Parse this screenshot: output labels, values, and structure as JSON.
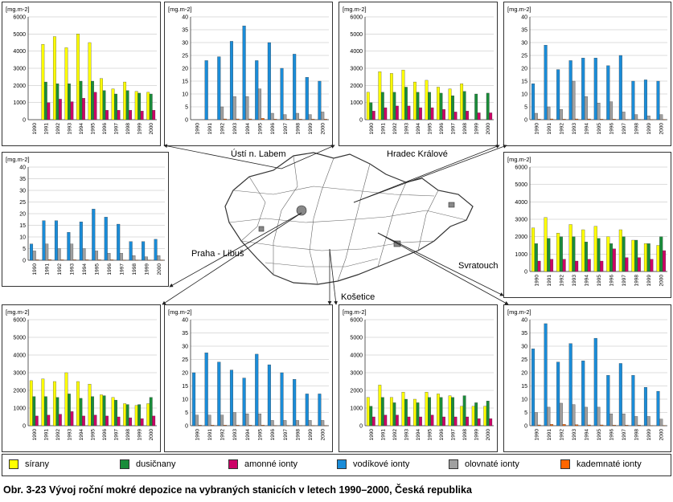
{
  "caption": "Obr. 3-23  Vývoj roční mokré depozice na vybraných stanicích v letech 1990–2000, Česká republika",
  "stations": {
    "usti": "Ústí n. Labem",
    "hradec": "Hradec Králové",
    "praha": "Praha - Libuš",
    "svratouch": "Svratouch",
    "kosetice": "Košetice"
  },
  "legend": [
    {
      "name": "sírany",
      "color": "#ffff00"
    },
    {
      "name": "dusičnany",
      "color": "#1a8c3a"
    },
    {
      "name": "amonné ionty",
      "color": "#cc0066"
    },
    {
      "name": "vodíkové ionty",
      "color": "#1a8cd8"
    },
    {
      "name": "olovnaté ionty",
      "color": "#a0a0a0"
    },
    {
      "name": "kademnaté ionty",
      "color": "#ff6600"
    }
  ],
  "chart_data": [
    {
      "id": "p1",
      "type": "bar",
      "ylabel": "[mg.m-2]",
      "ylim": [
        0,
        6000
      ],
      "yticks": [
        0,
        1000,
        2000,
        3000,
        4000,
        5000,
        6000
      ],
      "categories": [
        "1990",
        "1991",
        "1992",
        "1993",
        "1994",
        "1995",
        "1996",
        "1997",
        "1998",
        "1999",
        "2000"
      ],
      "series": [
        {
          "name": "sírany",
          "values": [
            null,
            4400,
            4850,
            4200,
            5000,
            4500,
            2400,
            1800,
            2200,
            1650,
            1600
          ]
        },
        {
          "name": "dusičnany",
          "values": [
            null,
            2200,
            2100,
            2100,
            2250,
            2250,
            1700,
            1500,
            1700,
            1550,
            1500
          ]
        },
        {
          "name": "amonné ionty",
          "values": [
            null,
            1000,
            1200,
            1050,
            1250,
            1600,
            550,
            550,
            550,
            500,
            550
          ]
        }
      ]
    },
    {
      "id": "p2",
      "type": "bar",
      "ylabel": "[mg.m-2]",
      "ylim": [
        0,
        40
      ],
      "yticks": [
        0,
        5,
        10,
        15,
        20,
        25,
        30,
        35,
        40
      ],
      "categories": [
        "1990",
        "1991",
        "1992",
        "1993",
        "1994",
        "1995",
        "1996",
        "1997",
        "1998",
        "1999",
        "2000"
      ],
      "series": [
        {
          "name": "vodíkové ionty",
          "values": [
            null,
            23,
            24.5,
            30.5,
            36.5,
            23,
            30,
            20,
            25.5,
            16.5,
            15
          ]
        },
        {
          "name": "olovnaté ionty",
          "values": [
            null,
            null,
            5,
            9,
            9,
            12,
            2.5,
            2,
            2.5,
            2,
            3
          ]
        },
        {
          "name": "kademnaté ionty",
          "values": [
            null,
            null,
            0.3,
            0.3,
            0.3,
            0.5,
            0.2,
            0.2,
            0.2,
            0.2,
            0.2
          ]
        }
      ]
    },
    {
      "id": "p3",
      "type": "bar",
      "ylabel": "[mg.m-2]",
      "ylim": [
        0,
        6000
      ],
      "yticks": [
        0,
        1000,
        2000,
        3000,
        4000,
        5000,
        6000
      ],
      "categories": [
        "1990",
        "1991",
        "1992",
        "1993",
        "1994",
        "1995",
        "1996",
        "1997",
        "1998",
        "1999",
        "2000"
      ],
      "series": [
        {
          "name": "sírany",
          "values": [
            1600,
            2800,
            2700,
            2900,
            2200,
            2300,
            1900,
            1800,
            2100,
            null,
            null
          ]
        },
        {
          "name": "dusičnany",
          "values": [
            1000,
            1600,
            1600,
            1900,
            1600,
            1600,
            1550,
            1400,
            1650,
            1500,
            1550
          ]
        },
        {
          "name": "amonné ionty",
          "values": [
            500,
            700,
            800,
            800,
            700,
            700,
            600,
            450,
            500,
            400,
            400
          ]
        }
      ]
    },
    {
      "id": "p4",
      "type": "bar",
      "ylabel": "[mg.m-2]",
      "ylim": [
        0,
        40
      ],
      "yticks": [
        0,
        5,
        10,
        15,
        20,
        25,
        30,
        35,
        40
      ],
      "categories": [
        "1990",
        "1991",
        "1992",
        "1993",
        "1994",
        "1995",
        "1996",
        "1997",
        "1998",
        "1999",
        "2000"
      ],
      "series": [
        {
          "name": "vodíkové ionty",
          "values": [
            14,
            29,
            19.5,
            23,
            24,
            24,
            21,
            25,
            15,
            15.5,
            15
          ]
        },
        {
          "name": "olovnaté ionty",
          "values": [
            2.5,
            5,
            4,
            15,
            9,
            6.5,
            7,
            3,
            2,
            1.5,
            2
          ]
        },
        {
          "name": "kademnaté ionty",
          "values": [
            0.2,
            0.3,
            0.2,
            0.3,
            0.3,
            0.2,
            0.2,
            0.1,
            0.1,
            0.1,
            0.1
          ]
        }
      ]
    },
    {
      "id": "p5",
      "type": "bar",
      "ylabel": "[mg.m-2]",
      "ylim": [
        0,
        40
      ],
      "yticks": [
        0,
        5,
        10,
        15,
        20,
        25,
        30,
        35,
        40
      ],
      "categories": [
        "1990",
        "1991",
        "1992",
        "1993",
        "1994",
        "1995",
        "1996",
        "1997",
        "1998",
        "1999",
        "2000"
      ],
      "series": [
        {
          "name": "vodíkové ionty",
          "values": [
            7,
            17,
            17,
            12,
            16.5,
            22,
            18.5,
            15.5,
            8,
            8,
            9
          ]
        },
        {
          "name": "olovnaté ionty",
          "values": [
            4,
            7,
            5,
            7,
            5,
            4,
            3,
            3,
            2,
            1.5,
            2
          ]
        },
        {
          "name": "kademnaté ionty",
          "values": [
            0.2,
            0.3,
            0.2,
            0.2,
            0.2,
            0.2,
            0.2,
            0.1,
            0.1,
            0.1,
            0.1
          ]
        }
      ]
    },
    {
      "id": "p6",
      "type": "bar",
      "ylabel": "[mg.m-2]",
      "ylim": [
        0,
        6000
      ],
      "yticks": [
        0,
        1000,
        2000,
        3000,
        4000,
        5000,
        6000
      ],
      "categories": [
        "1990",
        "1991",
        "1992",
        "1993",
        "1994",
        "1995",
        "1996",
        "1997",
        "1998",
        "1999",
        "2000"
      ],
      "series": [
        {
          "name": "sírany",
          "values": [
            2500,
            3100,
            2200,
            2700,
            2400,
            2600,
            2000,
            2400,
            1800,
            1600,
            1500
          ]
        },
        {
          "name": "dusičnany",
          "values": [
            1600,
            1900,
            2000,
            2000,
            1700,
            1900,
            1600,
            2000,
            1800,
            1600,
            2000
          ]
        },
        {
          "name": "amonné ionty",
          "values": [
            600,
            700,
            700,
            600,
            700,
            600,
            1300,
            800,
            800,
            700,
            1200
          ]
        }
      ]
    },
    {
      "id": "p7",
      "type": "bar",
      "ylabel": "[mg.m-2]",
      "ylim": [
        0,
        6000
      ],
      "yticks": [
        0,
        1000,
        2000,
        3000,
        4000,
        5000,
        6000
      ],
      "categories": [
        "1990",
        "1991",
        "1992",
        "1993",
        "1994",
        "1995",
        "1996",
        "1997",
        "1998",
        "1999",
        "2000"
      ],
      "series": [
        {
          "name": "sírany",
          "values": [
            2550,
            2650,
            2500,
            3000,
            2500,
            2350,
            1750,
            1600,
            1250,
            1150,
            1250
          ]
        },
        {
          "name": "dusičnany",
          "values": [
            1650,
            1650,
            1600,
            1800,
            1550,
            1650,
            1700,
            1450,
            1200,
            1200,
            1600
          ]
        },
        {
          "name": "amonné ionty",
          "values": [
            550,
            600,
            650,
            800,
            550,
            600,
            550,
            500,
            450,
            400,
            550
          ]
        }
      ]
    },
    {
      "id": "p8",
      "type": "bar",
      "ylabel": "[mg.m-2]",
      "ylim": [
        0,
        40
      ],
      "yticks": [
        0,
        5,
        10,
        15,
        20,
        25,
        30,
        35,
        40
      ],
      "categories": [
        "1990",
        "1991",
        "1992",
        "1993",
        "1994",
        "1995",
        "1996",
        "1997",
        "1998",
        "1999",
        "2000"
      ],
      "series": [
        {
          "name": "vodíkové ionty",
          "values": [
            20,
            27.5,
            24,
            21,
            18,
            27,
            23,
            20,
            17.5,
            12,
            12
          ]
        },
        {
          "name": "olovnaté ionty",
          "values": [
            4,
            4,
            4,
            5,
            4.5,
            4.5,
            2,
            2,
            2,
            2,
            2
          ]
        },
        {
          "name": "kademnaté ionty",
          "values": [
            0.2,
            0.2,
            0.2,
            0.2,
            0.2,
            0.2,
            0.1,
            0.1,
            0.1,
            0.1,
            0.1
          ]
        }
      ]
    },
    {
      "id": "p9",
      "type": "bar",
      "ylabel": "[mg.m-2]",
      "ylim": [
        0,
        6000
      ],
      "yticks": [
        0,
        1000,
        2000,
        3000,
        4000,
        5000,
        6000
      ],
      "categories": [
        "1990",
        "1991",
        "1992",
        "1993",
        "1994",
        "1995",
        "1996",
        "1997",
        "1998",
        "1999",
        "2000"
      ],
      "series": [
        {
          "name": "sírany",
          "values": [
            1600,
            2300,
            1600,
            1900,
            1500,
            1900,
            1800,
            1700,
            1100,
            1100,
            1100
          ]
        },
        {
          "name": "dusičnany",
          "values": [
            1100,
            1600,
            1300,
            1500,
            1300,
            1600,
            1600,
            1600,
            1700,
            1300,
            1400
          ]
        },
        {
          "name": "amonné ionty",
          "values": [
            500,
            600,
            600,
            500,
            500,
            600,
            500,
            500,
            500,
            400,
            400
          ]
        }
      ]
    },
    {
      "id": "p10",
      "type": "bar",
      "ylabel": "[mg.m-2]",
      "ylim": [
        0,
        40
      ],
      "yticks": [
        0,
        5,
        10,
        15,
        20,
        25,
        30,
        35,
        40
      ],
      "categories": [
        "1990",
        "1991",
        "1992",
        "1993",
        "1994",
        "1995",
        "1996",
        "1997",
        "1998",
        "1999",
        "2000"
      ],
      "series": [
        {
          "name": "vodíkové ionty",
          "values": [
            29,
            38.5,
            24,
            31,
            24.5,
            33,
            19,
            23.5,
            19,
            14.5,
            13
          ]
        },
        {
          "name": "olovnaté ionty",
          "values": [
            5,
            7,
            8.5,
            8,
            7,
            7,
            4.5,
            4.5,
            3.5,
            3.5,
            2.5
          ]
        },
        {
          "name": "kademnaté ionty",
          "values": [
            0.3,
            0.5,
            0.5,
            0.4,
            0.3,
            0.3,
            0.2,
            0.2,
            0.2,
            0.1,
            0.1
          ]
        }
      ]
    }
  ]
}
